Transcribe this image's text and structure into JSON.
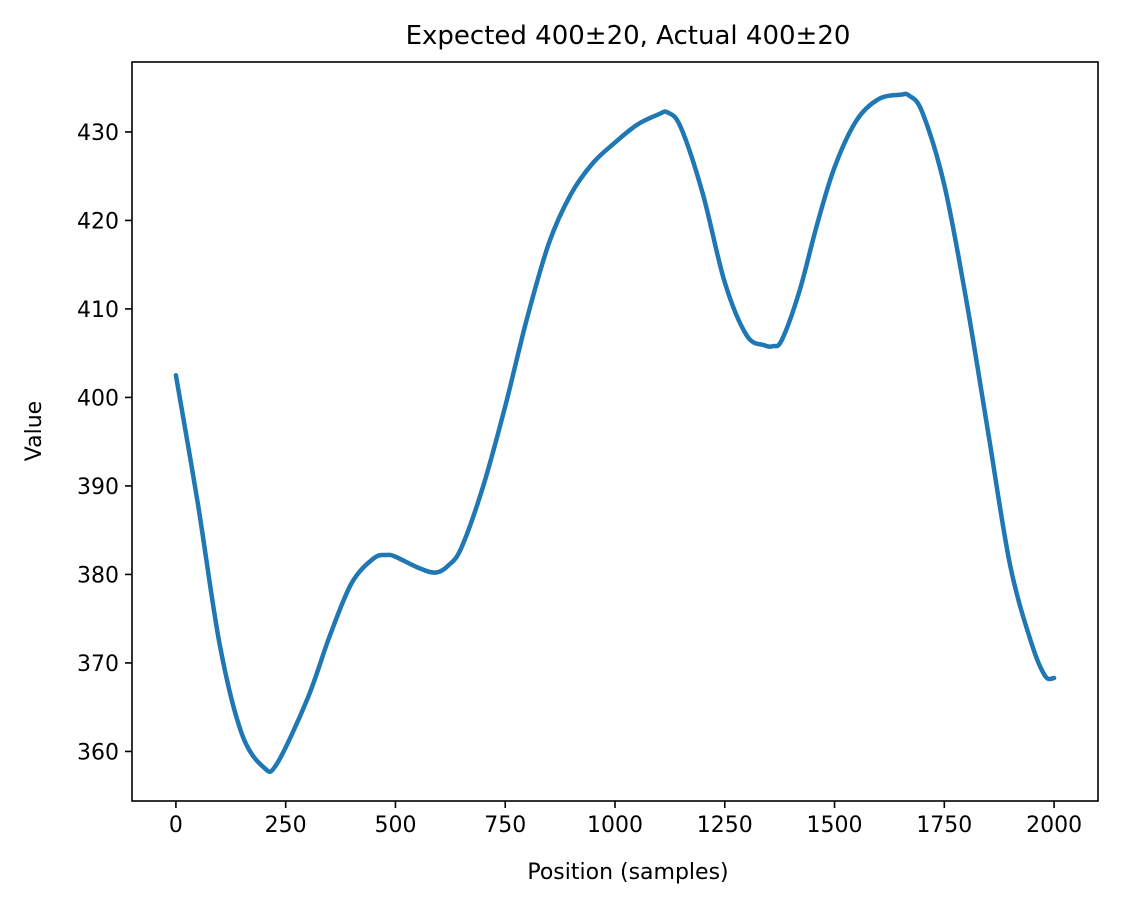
{
  "chart_data": {
    "type": "line",
    "title": "Expected 400±20, Actual 400±20",
    "xlabel": "Position (samples)",
    "ylabel": "Value",
    "xlim": [
      -100,
      2100
    ],
    "ylim": [
      354.4,
      437.9
    ],
    "xticks": [
      0,
      250,
      500,
      750,
      1000,
      1250,
      1500,
      1750,
      2000
    ],
    "yticks": [
      360,
      370,
      380,
      390,
      400,
      410,
      420,
      430
    ],
    "grid": false,
    "legend": "none",
    "series": [
      {
        "color": "#1f77b4",
        "x": [
          0,
          50,
          100,
          150,
          200,
          230,
          300,
          350,
          400,
          450,
          480,
          500,
          550,
          590,
          620,
          650,
          700,
          750,
          800,
          850,
          900,
          950,
          1000,
          1050,
          1100,
          1120,
          1150,
          1200,
          1250,
          1300,
          1340,
          1360,
          1380,
          1420,
          1460,
          1500,
          1550,
          1600,
          1650,
          1670,
          1700,
          1750,
          1800,
          1850,
          1900,
          1950,
          1980,
          2000
        ],
        "y": [
          402.5,
          388,
          372,
          362,
          358.2,
          358.6,
          366,
          373,
          379,
          381.8,
          382.2,
          382,
          380.8,
          380.2,
          381,
          383,
          390,
          399,
          409,
          417.5,
          423,
          426.5,
          428.8,
          430.8,
          432,
          432.2,
          430.5,
          423,
          413,
          407,
          405.9,
          405.8,
          406.5,
          412,
          419.5,
          426,
          431.3,
          433.7,
          434.2,
          434.1,
          432.2,
          424,
          411,
          396,
          381,
          372,
          368.5,
          368.3
        ]
      }
    ]
  }
}
